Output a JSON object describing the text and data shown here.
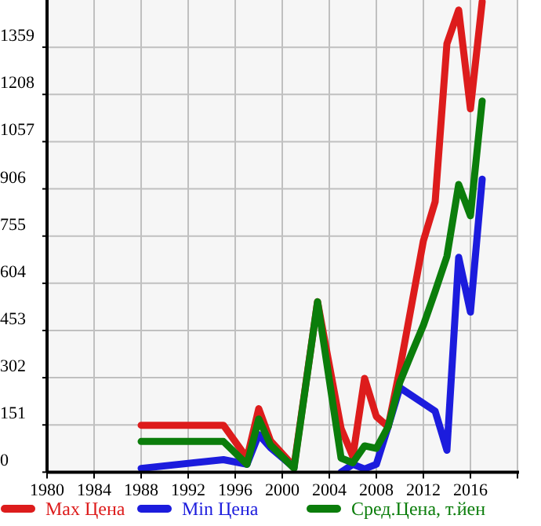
{
  "chart_data": {
    "type": "line",
    "xlim": [
      1980,
      2020
    ],
    "xticks": [
      1980,
      1984,
      1988,
      1992,
      1996,
      2000,
      2004,
      2008,
      2012,
      2016
    ],
    "ylim": [
      0,
      1510
    ],
    "yticks": [
      0,
      151,
      302,
      453,
      604,
      755,
      906,
      1057,
      1208,
      1359
    ],
    "grid": true,
    "legend": "bottom",
    "marker": "none",
    "line_style": "solid",
    "series": [
      {
        "name": "Max Цена",
        "color": "#dd1c1c",
        "x": [
          1988,
          1995,
          1997,
          1998,
          1999,
          2001,
          2003,
          2005,
          2006,
          2007,
          2008,
          2009,
          2010,
          2012,
          2013,
          2014,
          2015,
          2016,
          2017
        ],
        "values": [
          150,
          150,
          45,
          203,
          100,
          18,
          545,
          140,
          50,
          300,
          178,
          145,
          330,
          740,
          865,
          1370,
          1478,
          1162,
          1505
        ]
      },
      {
        "name": "Min Цена",
        "color": "#1c1cdd",
        "x": [
          1988,
          1995,
          1997,
          1998,
          1999,
          2001,
          2003,
          2005,
          2006,
          2007,
          2008,
          2009,
          2010,
          2013,
          2014,
          2015,
          2016,
          2017
        ],
        "values": [
          12,
          40,
          25,
          120,
          78,
          15,
          null,
          0,
          25,
          10,
          25,
          145,
          270,
          195,
          70,
          687,
          512,
          937
        ]
      },
      {
        "name": "Сред.Цена, т.йен",
        "color": "#0b7d0b",
        "x": [
          1988,
          1995,
          1997,
          1998,
          1999,
          2001,
          2003,
          2005,
          2006,
          2007,
          2008,
          2009,
          2010,
          2011,
          2012,
          2013,
          2014,
          2015,
          2016,
          2017
        ],
        "values": [
          98,
          98,
          25,
          170,
          87,
          12,
          545,
          45,
          30,
          84,
          76,
          145,
          288,
          380,
          470,
          578,
          690,
          920,
          820,
          1187
        ]
      }
    ]
  }
}
